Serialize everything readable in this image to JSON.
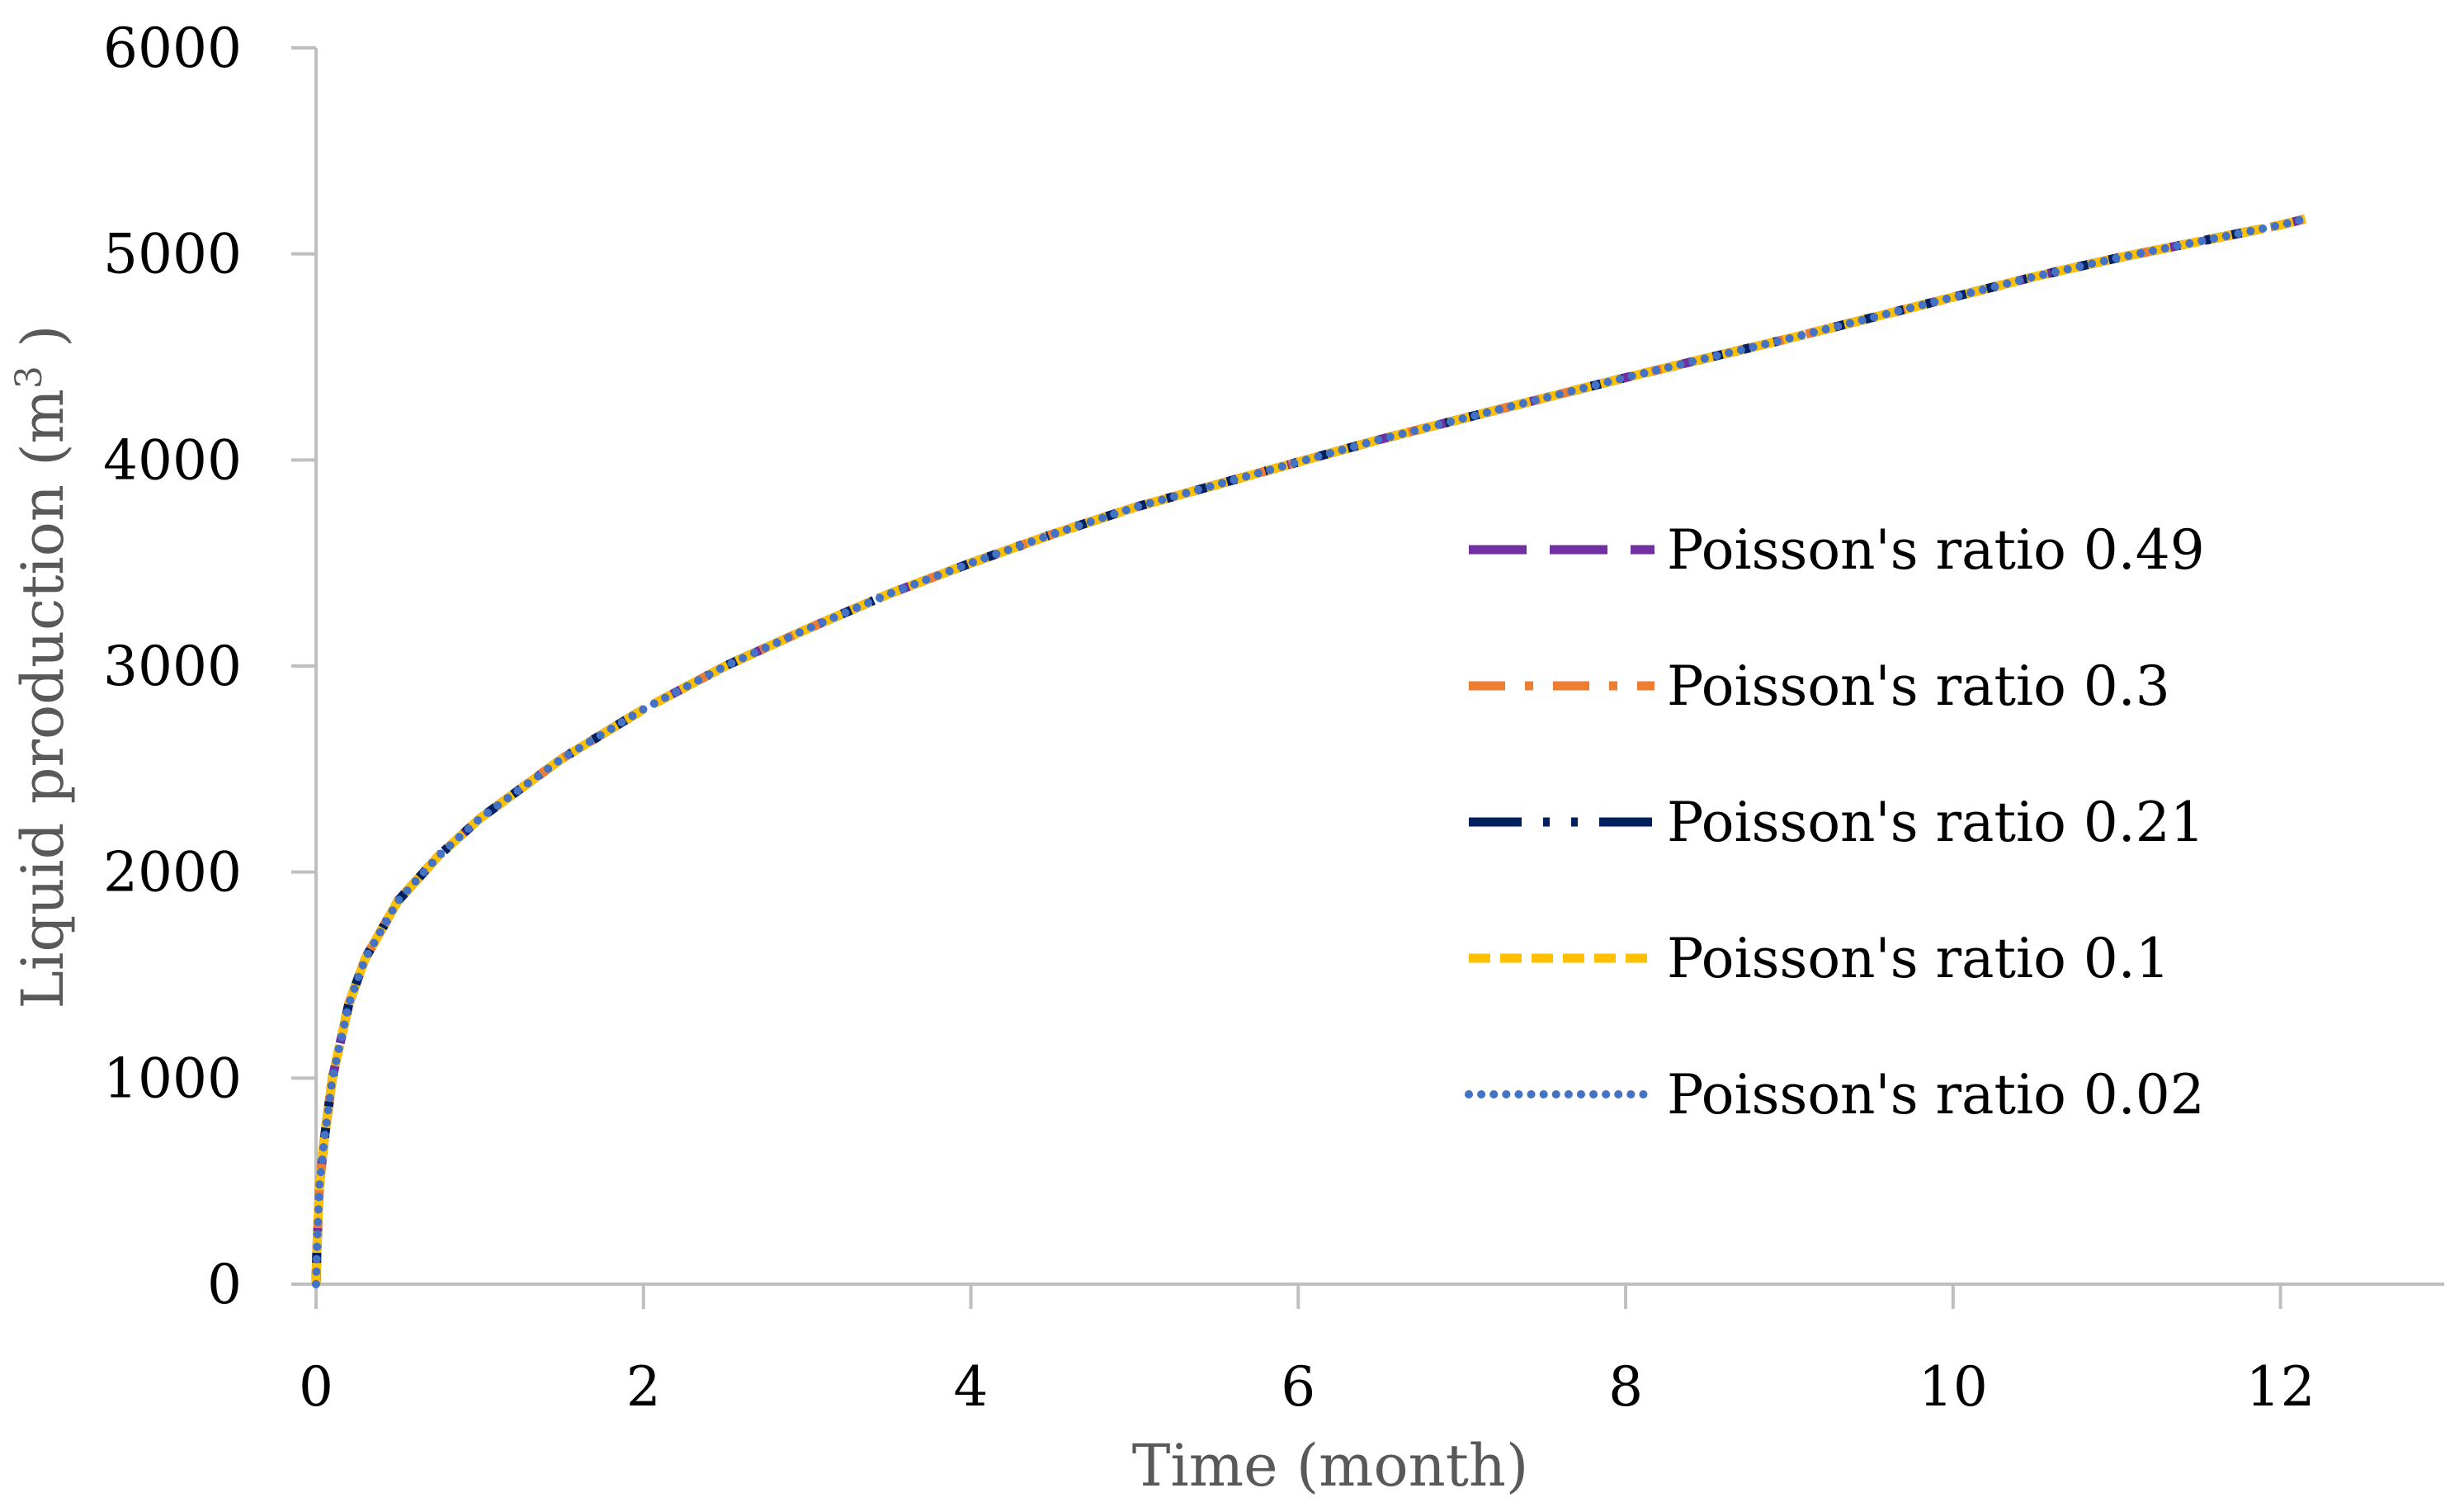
{
  "chart_data": {
    "type": "line",
    "title": "",
    "xlabel": "Time (month)",
    "ylabel": "Liquid production (m³ )",
    "ylabel_parts": {
      "before": "Liquid production (m",
      "sup": "3",
      "after": " )"
    },
    "xlim": [
      0,
      13
    ],
    "ylim": [
      0,
      6000
    ],
    "xticks": [
      "0",
      "2",
      "4",
      "6",
      "8",
      "10",
      "12"
    ],
    "yticks": [
      "0",
      "1000",
      "2000",
      "3000",
      "4000",
      "5000",
      "6000"
    ],
    "grid": false,
    "legend_position": "right-center",
    "x": [
      0,
      0.005,
      0.02,
      0.05,
      0.1,
      0.2,
      0.3,
      0.5,
      0.75,
      1,
      1.5,
      2,
      2.5,
      3,
      3.5,
      4,
      4.5,
      5,
      5.5,
      6,
      6.5,
      7,
      7.5,
      8,
      8.5,
      9,
      9.5,
      10,
      10.5,
      11,
      11.5,
      12,
      12.15
    ],
    "series": [
      {
        "name": "Poisson's ratio 0.49",
        "color": "#7030A0",
        "dash": "long-dash",
        "values": [
          0,
          160,
          470,
          700,
          1000,
          1360,
          1580,
          1860,
          2080,
          2260,
          2550,
          2790,
          3000,
          3180,
          3350,
          3500,
          3640,
          3770,
          3880,
          3990,
          4100,
          4200,
          4300,
          4400,
          4495,
          4590,
          4690,
          4790,
          4890,
          4980,
          5060,
          5140,
          5170
        ]
      },
      {
        "name": "Poisson's ratio 0.3",
        "color": "#ED7D31",
        "dash": "dash-dot",
        "values": [
          0,
          160,
          470,
          700,
          1000,
          1360,
          1580,
          1860,
          2080,
          2260,
          2550,
          2790,
          3000,
          3180,
          3350,
          3500,
          3640,
          3770,
          3880,
          3990,
          4100,
          4200,
          4300,
          4400,
          4495,
          4590,
          4690,
          4790,
          4890,
          4980,
          5060,
          5140,
          5170
        ]
      },
      {
        "name": "Poisson's ratio 0.21",
        "color": "#002060",
        "dash": "long-dash-dot-dot",
        "values": [
          0,
          160,
          470,
          700,
          1000,
          1360,
          1580,
          1860,
          2080,
          2260,
          2550,
          2790,
          3000,
          3180,
          3350,
          3500,
          3640,
          3770,
          3880,
          3990,
          4100,
          4200,
          4300,
          4400,
          4495,
          4590,
          4690,
          4790,
          4890,
          4980,
          5060,
          5140,
          5170
        ]
      },
      {
        "name": "Poisson's ratio 0.1",
        "color": "#FFC000",
        "dash": "dash",
        "values": [
          0,
          160,
          470,
          700,
          1000,
          1360,
          1580,
          1860,
          2080,
          2260,
          2550,
          2790,
          3000,
          3180,
          3350,
          3500,
          3640,
          3770,
          3880,
          3990,
          4100,
          4200,
          4300,
          4400,
          4495,
          4590,
          4690,
          4790,
          4890,
          4980,
          5060,
          5140,
          5170
        ]
      },
      {
        "name": "Poisson's ratio 0.02",
        "color": "#4472C4",
        "dash": "dot",
        "values": [
          0,
          160,
          470,
          700,
          1000,
          1360,
          1580,
          1860,
          2080,
          2260,
          2550,
          2790,
          3000,
          3180,
          3350,
          3500,
          3640,
          3770,
          3880,
          3990,
          4100,
          4200,
          4300,
          4400,
          4495,
          4590,
          4690,
          4790,
          4890,
          4980,
          5060,
          5140,
          5170
        ]
      }
    ]
  }
}
